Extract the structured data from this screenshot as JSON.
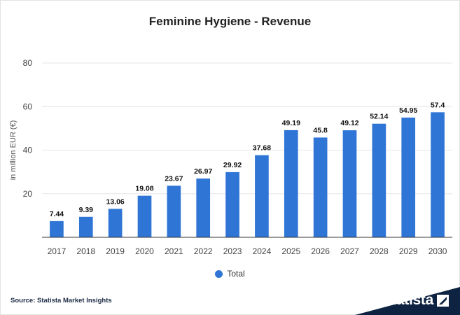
{
  "title": "Feminine Hygiene - Revenue",
  "legend_label": "Total",
  "source": "Source: Statista Market Insights",
  "logo_text": "statista",
  "colors": {
    "bar": "#2f75d6",
    "grid": "#e6e6e6",
    "axis": "#333333",
    "logo_band": "#0d2341"
  },
  "chart_data": {
    "type": "bar",
    "title": "Feminine Hygiene - Revenue",
    "xlabel": "",
    "ylabel": "in million EUR (€)",
    "ylim": [
      0,
      80
    ],
    "yticks": [
      20,
      40,
      60,
      80
    ],
    "grid": true,
    "legend": "bottom",
    "categories": [
      "2017",
      "2018",
      "2019",
      "2020",
      "2021",
      "2022",
      "2023",
      "2024",
      "2025",
      "2026",
      "2027",
      "2028",
      "2029",
      "2030"
    ],
    "series": [
      {
        "name": "Total",
        "values": [
          7.44,
          9.39,
          13.06,
          19.08,
          23.67,
          26.97,
          29.92,
          37.68,
          49.19,
          45.8,
          49.12,
          52.14,
          54.95,
          57.4
        ],
        "labels": [
          "7.44",
          "9.39",
          "13.06",
          "19.08",
          "23.67",
          "26.97",
          "29.92",
          "37.68",
          "49.19",
          "45.8",
          "49.12",
          "52.14",
          "54.95",
          "57.4"
        ]
      }
    ]
  }
}
